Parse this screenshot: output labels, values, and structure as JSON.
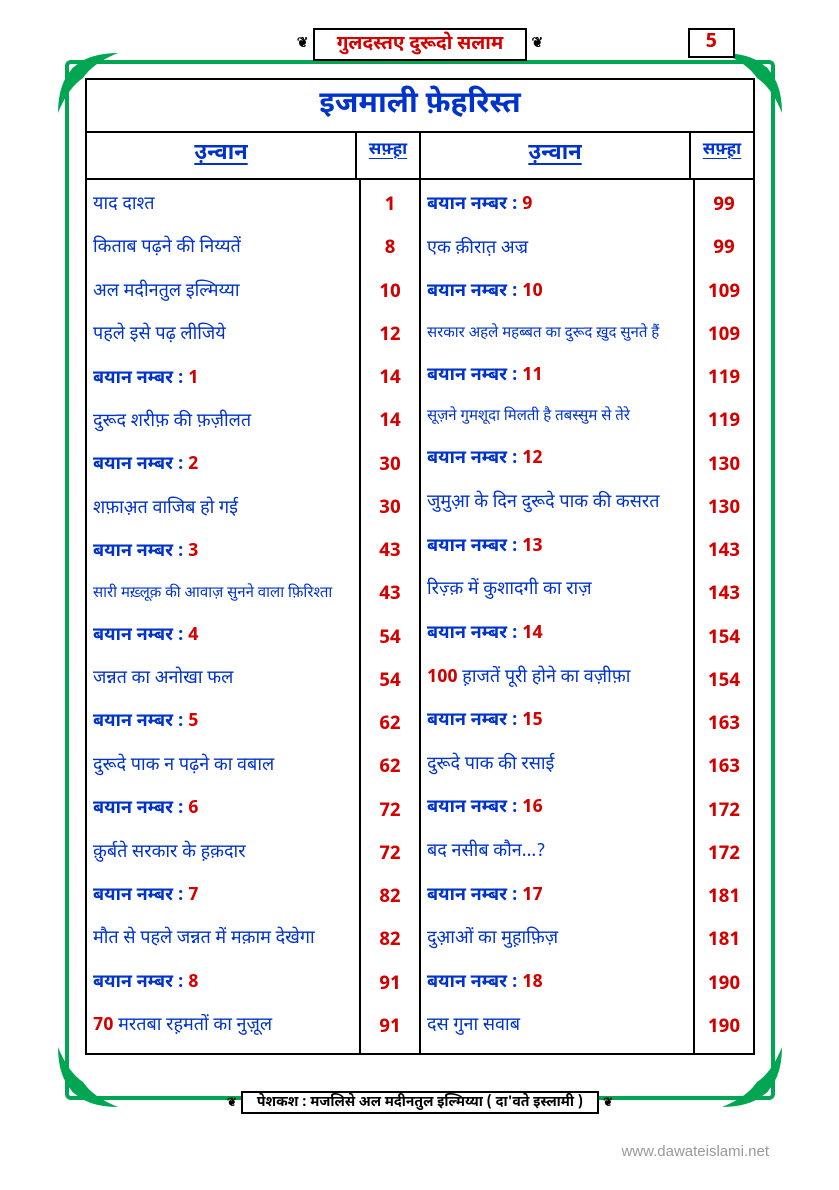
{
  "header_title": "गुलदस्तए दुरूदो सलाम",
  "page_number": "5",
  "main_title": "इजमाली फ़ेहरिस्त",
  "col_head_topic": "उ़न्वान",
  "col_head_page": "सफ़्ह़ा",
  "footer_text": "पेशकश : मजलिसे अल मदीनतुल इल्मिय्या ( दा'वते इस्लामी )",
  "site_url": "www.dawateislami.net",
  "colors": {
    "frame": "#00a651",
    "red": "#d40000",
    "blue": "#0033cc",
    "black": "#000000"
  },
  "left_rows": [
    {
      "topic": "याद दाश्त",
      "bold": false,
      "page": "1"
    },
    {
      "topic": "किताब पढ़ने की निय्यतें",
      "bold": false,
      "page": "8"
    },
    {
      "topic": "अल मदीनतुल इल्मिय्या",
      "bold": false,
      "page": "10"
    },
    {
      "topic": "पहले इसे पढ़ लीजिये",
      "bold": false,
      "page": "12"
    },
    {
      "topic": "बयान नम्बर : ",
      "rednum": "1",
      "bold": true,
      "page": "14"
    },
    {
      "topic": "दुरूद शरीफ़ की फ़ज़ीलत",
      "bold": false,
      "page": "14"
    },
    {
      "topic": "बयान नम्बर : ",
      "rednum": "2",
      "bold": true,
      "page": "30"
    },
    {
      "topic": "शफ़ाअ़त वाजिब हो गई",
      "bold": false,
      "page": "30"
    },
    {
      "topic": "बयान नम्बर : ",
      "rednum": "3",
      "bold": true,
      "page": "43"
    },
    {
      "topic": "सारी मख़्लूक़ की आवाज़ सुनने वाला फ़िरिश्ता",
      "bold": false,
      "page": "43",
      "small": true
    },
    {
      "topic": "बयान नम्बर : ",
      "rednum": "4",
      "bold": true,
      "page": "54"
    },
    {
      "topic": "जन्नत का अनोखा फल",
      "bold": false,
      "page": "54"
    },
    {
      "topic": "बयान नम्बर : ",
      "rednum": "5",
      "bold": true,
      "page": "62"
    },
    {
      "topic": "दुरूदे पाक न पढ़ने का वबाल",
      "bold": false,
      "page": "62"
    },
    {
      "topic": "बयान नम्बर : ",
      "rednum": "6",
      "bold": true,
      "page": "72"
    },
    {
      "topic": "क़ुर्बते सरकार के ह़क़दार",
      "bold": false,
      "page": "72"
    },
    {
      "topic": "बयान नम्बर : ",
      "rednum": "7",
      "bold": true,
      "page": "82"
    },
    {
      "topic": "मौत से पहले जन्नत में मक़ाम देखेगा",
      "bold": false,
      "page": "82"
    },
    {
      "topic": "बयान नम्बर : ",
      "rednum": "8",
      "bold": true,
      "page": "91"
    },
    {
      "prefix_red": "70",
      "topic": " मरतबा रह़मतों का नुज़ूल",
      "bold": false,
      "page": "91"
    }
  ],
  "right_rows": [
    {
      "topic": "बयान नम्बर : ",
      "rednum": "9",
      "bold": true,
      "page": "99"
    },
    {
      "topic": "एक क़ीरात़ अज्र",
      "bold": false,
      "page": "99"
    },
    {
      "topic": "बयान नम्बर : ",
      "rednum": "10",
      "bold": true,
      "page": "109"
    },
    {
      "topic": "सरकार अहले महब्बत का दुरूद ख़ुद सुनते हैं",
      "bold": false,
      "page": "109",
      "small": true
    },
    {
      "topic": "बयान नम्बर : ",
      "rednum": "11",
      "bold": true,
      "page": "119"
    },
    {
      "topic": "सूज़ने गुमशूदा मिलती है तबस्सुम से तेरे",
      "bold": false,
      "page": "119",
      "small": true
    },
    {
      "topic": "बयान नम्बर : ",
      "rednum": "12",
      "bold": true,
      "page": "130"
    },
    {
      "topic": "जुमुआ़ के दिन दुरूदे पाक की कसरत",
      "bold": false,
      "page": "130"
    },
    {
      "topic": "बयान नम्बर : ",
      "rednum": "13",
      "bold": true,
      "page": "143"
    },
    {
      "topic": "रिज़्क़ में कुशादगी का राज़",
      "bold": false,
      "page": "143"
    },
    {
      "topic": "बयान नम्बर : ",
      "rednum": "14",
      "bold": true,
      "page": "154"
    },
    {
      "prefix_red": "100",
      "topic": " ह़ाजतें पूरी होने का वज़ीफ़ा",
      "bold": false,
      "page": "154"
    },
    {
      "topic": "बयान नम्बर : ",
      "rednum": "15",
      "bold": true,
      "page": "163"
    },
    {
      "topic": "दुरूदे पाक की रसाई",
      "bold": false,
      "page": "163"
    },
    {
      "topic": "बयान नम्बर : ",
      "rednum": "16",
      "bold": true,
      "page": "172"
    },
    {
      "topic": "बद नसीब कौन...?",
      "bold": false,
      "page": "172"
    },
    {
      "topic": "बयान नम्बर : ",
      "rednum": "17",
      "bold": true,
      "page": "181"
    },
    {
      "topic": "दुआ़ओं का मुह़ाफ़िज़",
      "bold": false,
      "page": "181"
    },
    {
      "topic": "बयान नम्बर : ",
      "rednum": "18",
      "bold": true,
      "page": "190"
    },
    {
      "topic": "दस गुना सवाब",
      "bold": false,
      "page": "190"
    }
  ]
}
